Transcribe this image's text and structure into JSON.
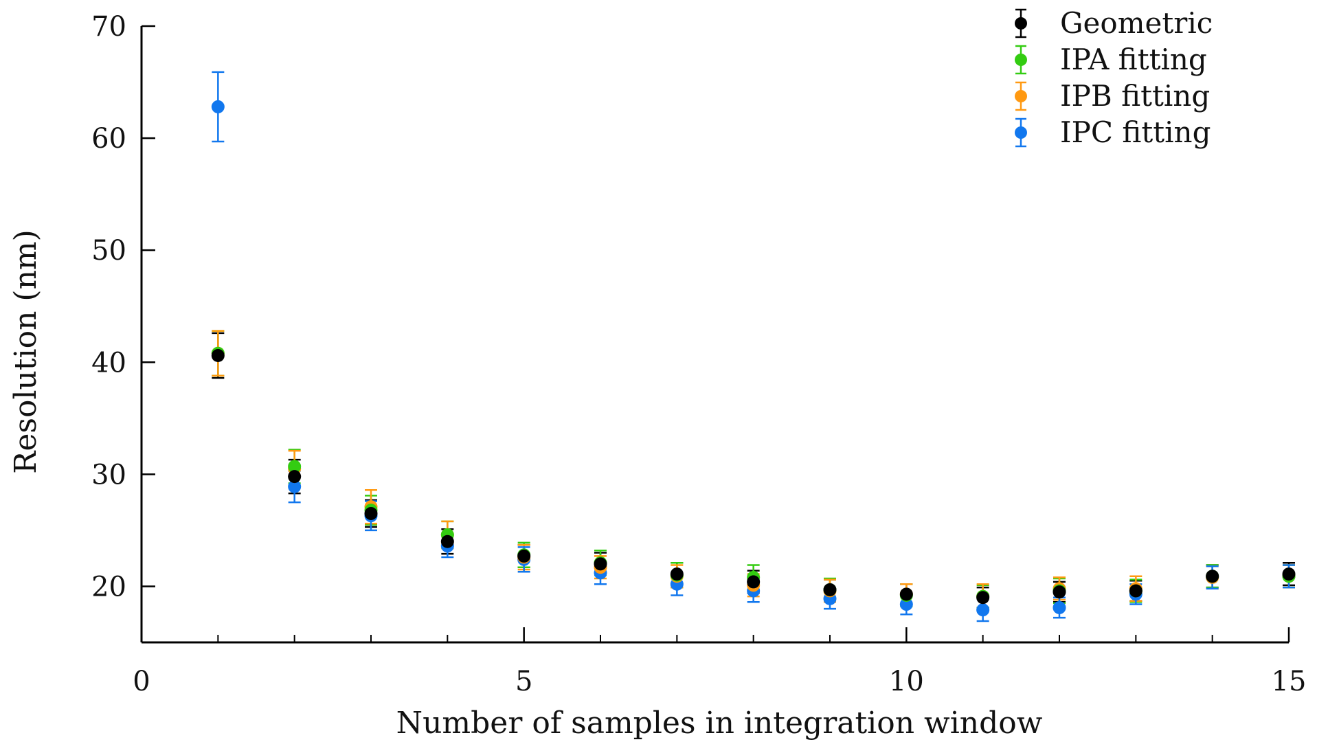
{
  "chart_data": {
    "type": "scatter",
    "title": "",
    "xlabel": "Number of samples in integration window",
    "ylabel": "Resolution (nm)",
    "xlim": [
      0,
      15
    ],
    "ylim": [
      15,
      70
    ],
    "x_ticks": [
      0,
      5,
      10,
      15
    ],
    "x_minor_ticks": [
      1,
      2,
      3,
      4,
      6,
      7,
      8,
      9,
      11,
      12,
      13,
      14
    ],
    "y_ticks": [
      20,
      30,
      40,
      50,
      60,
      70
    ],
    "grid": false,
    "legend_position": "top-right",
    "x": [
      1,
      2,
      3,
      4,
      5,
      6,
      7,
      8,
      9,
      10,
      11,
      12,
      13,
      14,
      15
    ],
    "series": [
      {
        "name": "Geometric",
        "color": "#000000",
        "values": [
          40.6,
          29.8,
          26.5,
          24.0,
          22.7,
          22.0,
          21.1,
          20.4,
          19.7,
          19.3,
          19.0,
          19.5,
          19.6,
          20.9,
          21.1
        ],
        "errors": [
          2.0,
          1.5,
          1.2,
          1.1,
          1.0,
          1.0,
          1.0,
          1.0,
          0.9,
          0.9,
          0.9,
          0.9,
          0.9,
          1.0,
          1.0
        ]
      },
      {
        "name": "IPA fitting",
        "color": "#33cc11",
        "values": [
          40.8,
          30.7,
          26.8,
          24.6,
          22.8,
          22.1,
          21.0,
          20.8,
          19.7,
          19.2,
          19.1,
          19.6,
          19.6,
          20.9,
          20.9
        ],
        "errors": [
          2.0,
          1.5,
          1.3,
          1.2,
          1.1,
          1.1,
          1.1,
          1.1,
          1.0,
          1.0,
          1.0,
          1.1,
          1.0,
          1.0,
          1.0
        ]
      },
      {
        "name": "IPB fitting",
        "color": "#ff9911",
        "values": [
          40.8,
          30.5,
          27.1,
          24.6,
          22.6,
          21.7,
          20.9,
          20.1,
          19.6,
          19.3,
          19.1,
          19.8,
          19.8,
          20.8,
          20.9
        ],
        "errors": [
          2.0,
          1.6,
          1.5,
          1.2,
          1.1,
          1.0,
          1.0,
          1.0,
          1.0,
          0.9,
          1.1,
          1.0,
          1.1,
          1.0,
          1.0
        ]
      },
      {
        "name": "IPC fitting",
        "color": "#1177ee",
        "values": [
          62.8,
          28.9,
          26.3,
          23.6,
          22.4,
          21.2,
          20.2,
          19.6,
          18.9,
          18.4,
          17.9,
          18.1,
          19.3,
          20.8,
          20.9
        ],
        "errors": [
          3.1,
          1.4,
          1.3,
          1.0,
          1.1,
          1.0,
          1.0,
          1.0,
          0.9,
          0.9,
          1.0,
          0.9,
          0.9,
          1.0,
          1.0
        ]
      }
    ]
  }
}
